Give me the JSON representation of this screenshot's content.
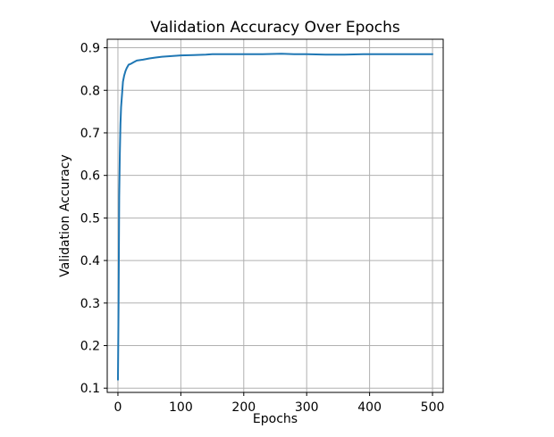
{
  "chart_data": {
    "type": "line",
    "title": "Validation Accuracy Over Epochs",
    "xlabel": "Epochs",
    "ylabel": "Validation Accuracy",
    "xlim": [
      -17,
      517
    ],
    "ylim": [
      0.09,
      0.92
    ],
    "xticks": [
      0,
      100,
      200,
      300,
      400,
      500
    ],
    "yticks": [
      0.1,
      0.2,
      0.3,
      0.4,
      0.5,
      0.6,
      0.7,
      0.8,
      0.9
    ],
    "xtick_labels": [
      "0",
      "100",
      "200",
      "300",
      "400",
      "500"
    ],
    "ytick_labels": [
      "0.1",
      "0.2",
      "0.3",
      "0.4",
      "0.5",
      "0.6",
      "0.7",
      "0.8",
      "0.9"
    ],
    "grid": true,
    "line_color": "#1f77b4",
    "series": [
      {
        "x": [
          0,
          1,
          2,
          3,
          4,
          5,
          6,
          7,
          8,
          10,
          12,
          14,
          17,
          20,
          25,
          30,
          40,
          50,
          60,
          70,
          80,
          90,
          100,
          120,
          140,
          150,
          170,
          200,
          230,
          260,
          280,
          300,
          330,
          360,
          390,
          420,
          450,
          480,
          500
        ],
        "y": [
          0.12,
          0.3,
          0.55,
          0.65,
          0.72,
          0.76,
          0.78,
          0.8,
          0.82,
          0.835,
          0.845,
          0.852,
          0.86,
          0.862,
          0.866,
          0.87,
          0.872,
          0.875,
          0.877,
          0.879,
          0.88,
          0.881,
          0.882,
          0.883,
          0.884,
          0.885,
          0.885,
          0.885,
          0.885,
          0.886,
          0.885,
          0.885,
          0.884,
          0.884,
          0.885,
          0.885,
          0.885,
          0.885,
          0.885
        ]
      }
    ]
  }
}
